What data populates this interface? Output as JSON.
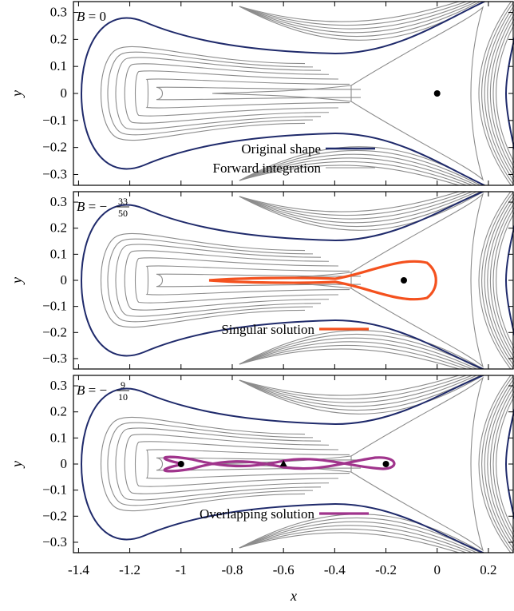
{
  "chart_data": [
    {
      "type": "line",
      "label": "B = 0",
      "label_parts": {
        "var": "B",
        "rel": " = ",
        "sign": "",
        "num": "0",
        "den": ""
      },
      "xlim": [
        -1.42,
        0.3
      ],
      "ylim": [
        -0.34,
        0.34
      ],
      "ylabel": "y",
      "yticks": [
        "0.3",
        "0.2",
        "0.1",
        "0",
        "−0.1",
        "−0.2",
        "−0.3"
      ],
      "ytick_values": [
        0.3,
        0.2,
        0.1,
        0,
        -0.1,
        -0.2,
        -0.3
      ],
      "legend_placement": "bottom-center",
      "series": [
        {
          "name": "Original shape",
          "color": "#1f2a6b"
        },
        {
          "name": "Forward integration",
          "color": "#8c8c8c"
        }
      ],
      "markers": [
        {
          "shape": "circle",
          "x": 0,
          "y": 0
        }
      ]
    },
    {
      "type": "line",
      "label": "B = −33/50",
      "label_parts": {
        "var": "B",
        "rel": " = ",
        "sign": "−",
        "num": "33",
        "den": "50"
      },
      "xlim": [
        -1.42,
        0.3
      ],
      "ylim": [
        -0.34,
        0.34
      ],
      "ylabel": "y",
      "yticks": [
        "0.3",
        "0.2",
        "0.1",
        "0",
        "−0.1",
        "−0.2",
        "−0.3"
      ],
      "ytick_values": [
        0.3,
        0.2,
        0.1,
        0,
        -0.1,
        -0.2,
        -0.3
      ],
      "legend_placement": "bottom-center",
      "series": [
        {
          "name": "Singular solution",
          "color": "#f4511e"
        }
      ],
      "markers": [
        {
          "shape": "circle",
          "x": -0.13,
          "y": 0
        }
      ]
    },
    {
      "type": "line",
      "label": "B = −9/10",
      "label_parts": {
        "var": "B",
        "rel": " = ",
        "sign": "−",
        "num": "9",
        "den": "10"
      },
      "xlim": [
        -1.42,
        0.3
      ],
      "ylim": [
        -0.34,
        0.34
      ],
      "xlabel": "x",
      "ylabel": "y",
      "xticks": [
        "-1.4",
        "-1.2",
        "-1",
        "-0.8",
        "-0.6",
        "-0.4",
        "-0.2",
        "0",
        "0.2"
      ],
      "xtick_values": [
        -1.4,
        -1.2,
        -1,
        -0.8,
        -0.6,
        -0.4,
        -0.2,
        0,
        0.2
      ],
      "yticks": [
        "0.3",
        "0.2",
        "0.1",
        "0",
        "−0.1",
        "−0.2",
        "−0.3"
      ],
      "ytick_values": [
        0.3,
        0.2,
        0.1,
        0,
        -0.1,
        -0.2,
        -0.3
      ],
      "legend_placement": "bottom-center",
      "series": [
        {
          "name": "Overlapping solution",
          "color": "#a0348c"
        }
      ],
      "markers": [
        {
          "shape": "circle",
          "x": -1,
          "y": 0
        },
        {
          "shape": "triangle",
          "x": -0.6,
          "y": 0
        },
        {
          "shape": "circle",
          "x": -0.2,
          "y": 0
        }
      ]
    }
  ]
}
